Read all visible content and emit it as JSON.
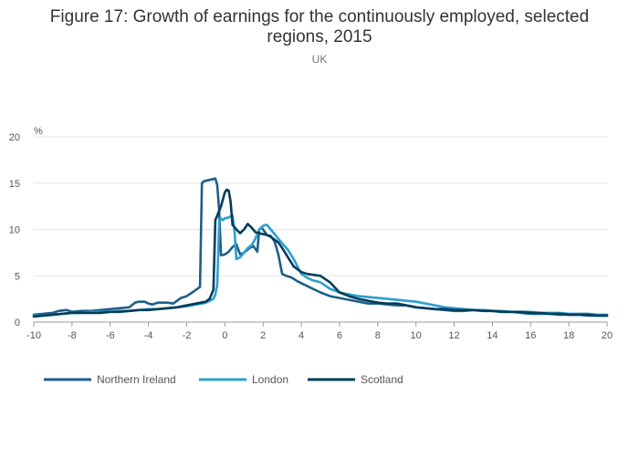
{
  "chart_data": {
    "type": "line",
    "title": "Figure 17: Growth of earnings for the continuously employed, selected regions, 2015",
    "title_lines": [
      "Figure 17: Growth of earnings for the continuously employed, selected",
      "regions, 2015"
    ],
    "subtitle": "UK",
    "ylabel": "%",
    "xlabel": "",
    "xlim": [
      -10,
      20
    ],
    "ylim": [
      0,
      20
    ],
    "x_ticks": [
      -10,
      -8,
      -6,
      -4,
      -2,
      0,
      2,
      4,
      6,
      8,
      10,
      12,
      14,
      16,
      18,
      20
    ],
    "y_ticks": [
      0,
      5,
      10,
      15,
      20
    ],
    "grid": true,
    "legend_position": "bottom-left",
    "series": [
      {
        "name": "Northern Ireland",
        "color": "#1f5e8c",
        "x": [
          -10,
          -9.5,
          -9,
          -8.7,
          -8.3,
          -8,
          -7.5,
          -7,
          -6.5,
          -6,
          -5.5,
          -5,
          -4.7,
          -4.5,
          -4.2,
          -4,
          -3.8,
          -3.5,
          -3,
          -2.7,
          -2.5,
          -2.3,
          -2,
          -1.7,
          -1.5,
          -1.3,
          -1.2,
          -1.1,
          -0.9,
          -0.7,
          -0.5,
          -0.4,
          -0.3,
          -0.2,
          0,
          0.2,
          0.4,
          0.6,
          0.8,
          1,
          1.3,
          1.5,
          1.7,
          1.8,
          1.9,
          2,
          2.2,
          2.4,
          2.6,
          2.8,
          3,
          3.2,
          3.5,
          3.8,
          4,
          4.3,
          4.6,
          5,
          5.5,
          6,
          6.5,
          7,
          7.5,
          8,
          8.5,
          9,
          9.5,
          10,
          10.5,
          11,
          11.5,
          12,
          12.5,
          13,
          13.5,
          14,
          14.5,
          15,
          15.5,
          16,
          16.5,
          17,
          17.5,
          18,
          18.5,
          19,
          19.5,
          20
        ],
        "values": [
          0.8,
          0.9,
          1.0,
          1.2,
          1.3,
          1.1,
          1.2,
          1.2,
          1.3,
          1.4,
          1.5,
          1.6,
          2.1,
          2.2,
          2.2,
          2.0,
          1.9,
          2.1,
          2.1,
          2.0,
          2.3,
          2.6,
          2.8,
          3.2,
          3.5,
          3.8,
          15.0,
          15.2,
          15.3,
          15.4,
          15.5,
          14.8,
          12.0,
          7.2,
          7.3,
          7.6,
          8.1,
          8.4,
          7.3,
          7.5,
          8.0,
          8.2,
          7.6,
          10.0,
          10.2,
          10.0,
          9.4,
          9.3,
          8.7,
          7.3,
          5.2,
          5.0,
          4.8,
          4.4,
          4.2,
          3.9,
          3.6,
          3.2,
          2.8,
          2.6,
          2.4,
          2.2,
          2.0,
          2.0,
          1.9,
          1.8,
          1.8,
          1.6,
          1.5,
          1.4,
          1.3,
          1.2,
          1.2,
          1.3,
          1.3,
          1.2,
          1.1,
          1.1,
          1.0,
          0.9,
          0.9,
          0.9,
          0.8,
          0.8,
          0.8,
          0.7,
          0.7,
          0.7
        ]
      },
      {
        "name": "London",
        "color": "#2d9fd0",
        "x": [
          -10,
          -9.5,
          -9,
          -8.5,
          -8,
          -7.5,
          -7,
          -6.5,
          -6,
          -5.5,
          -5,
          -4.5,
          -4,
          -3.5,
          -3,
          -2.5,
          -2,
          -1.5,
          -1.2,
          -1,
          -0.8,
          -0.6,
          -0.5,
          -0.4,
          -0.3,
          -0.2,
          -0.1,
          0,
          0.2,
          0.4,
          0.5,
          0.6,
          0.8,
          1,
          1.2,
          1.4,
          1.6,
          1.8,
          2,
          2.2,
          2.4,
          2.6,
          2.8,
          3,
          3.3,
          3.6,
          4,
          4.3,
          4.6,
          5,
          5.5,
          6,
          6.5,
          7,
          7.5,
          8,
          8.5,
          9,
          9.5,
          10,
          10.5,
          11,
          11.5,
          12,
          12.5,
          13,
          13.5,
          14,
          14.5,
          15,
          15.5,
          16,
          16.5,
          17,
          17.5,
          18,
          18.5,
          19,
          19.5,
          20
        ],
        "values": [
          0.7,
          0.7,
          0.8,
          0.9,
          1.0,
          1.0,
          1.1,
          1.1,
          1.1,
          1.2,
          1.2,
          1.3,
          1.4,
          1.4,
          1.5,
          1.6,
          1.7,
          1.9,
          2.0,
          2.1,
          2.3,
          2.5,
          3.0,
          4.0,
          10.8,
          11.2,
          11.0,
          11.2,
          11.3,
          11.5,
          10.0,
          6.8,
          7.0,
          7.5,
          8.0,
          8.3,
          9.0,
          10.0,
          10.4,
          10.5,
          10.0,
          9.5,
          9.0,
          8.5,
          7.8,
          6.8,
          5.2,
          4.8,
          4.5,
          4.3,
          3.6,
          3.2,
          3.0,
          2.8,
          2.7,
          2.6,
          2.5,
          2.4,
          2.3,
          2.2,
          2.0,
          1.8,
          1.6,
          1.5,
          1.4,
          1.3,
          1.3,
          1.2,
          1.2,
          1.1,
          1.1,
          1.1,
          1.0,
          1.0,
          1.0,
          0.9,
          0.9,
          0.9,
          0.8,
          0.8
        ]
      },
      {
        "name": "Scotland",
        "color": "#003d59",
        "x": [
          -10,
          -9.5,
          -9,
          -8.5,
          -8,
          -7.5,
          -7,
          -6.5,
          -6,
          -5.5,
          -5,
          -4.5,
          -4,
          -3.5,
          -3,
          -2.5,
          -2,
          -1.5,
          -1,
          -0.8,
          -0.6,
          -0.5,
          -0.4,
          -0.2,
          0,
          0.1,
          0.2,
          0.3,
          0.4,
          0.6,
          0.8,
          1,
          1.2,
          1.4,
          1.6,
          1.8,
          2,
          2.2,
          2.4,
          2.6,
          2.8,
          3,
          3.3,
          3.6,
          4,
          4.3,
          4.6,
          5,
          5.5,
          6,
          6.5,
          7,
          7.5,
          8,
          8.5,
          9,
          9.5,
          10,
          10.5,
          11,
          11.5,
          12,
          12.5,
          13,
          13.5,
          14,
          14.5,
          15,
          15.5,
          16,
          16.5,
          17,
          17.5,
          18,
          18.5,
          19,
          19.5,
          20
        ],
        "values": [
          0.6,
          0.7,
          0.8,
          0.9,
          1.0,
          1.0,
          1.0,
          1.0,
          1.1,
          1.1,
          1.2,
          1.3,
          1.3,
          1.4,
          1.5,
          1.6,
          1.8,
          2.0,
          2.2,
          2.5,
          3.5,
          11.0,
          11.5,
          12.5,
          14.0,
          14.3,
          14.2,
          13.0,
          10.5,
          10.0,
          9.6,
          10.0,
          10.6,
          10.2,
          9.7,
          9.6,
          9.5,
          9.4,
          9.2,
          8.9,
          8.6,
          8.0,
          7.0,
          6.0,
          5.4,
          5.2,
          5.1,
          5.0,
          4.3,
          3.2,
          2.8,
          2.5,
          2.3,
          2.1,
          2.0,
          2.0,
          1.8,
          1.6,
          1.5,
          1.4,
          1.4,
          1.3,
          1.3,
          1.3,
          1.2,
          1.2,
          1.1,
          1.1,
          1.1,
          1.0,
          1.0,
          0.9,
          0.9,
          0.8,
          0.8,
          0.8,
          0.7,
          0.7
        ]
      }
    ]
  }
}
